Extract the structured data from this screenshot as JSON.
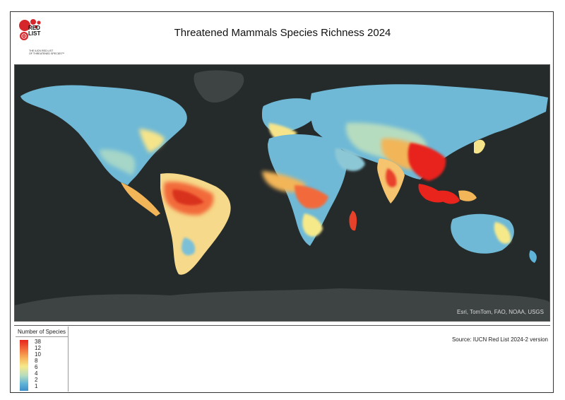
{
  "header": {
    "title": "Threatened Mammals Species Richness 2024",
    "logo": {
      "name_line1": "RED",
      "name_line2": "LIST",
      "tagline_line1": "THE IUCN RED LIST",
      "tagline_line2": "OF THREATENED SPECIES™",
      "brand_color": "#d6262b"
    }
  },
  "map": {
    "background_color": "#252a2b",
    "land_nodata_color": "#3e4344",
    "attribution": "Esri, TomTom, FAO, NOAA, USGS",
    "color_ramp": [
      "#3d8fc9",
      "#5fb3d6",
      "#b6dcc0",
      "#f6e98a",
      "#f7b15a",
      "#f26b3a",
      "#e8241c"
    ]
  },
  "legend": {
    "title": "Number of Species",
    "labels": [
      "38",
      "12",
      "10",
      "8",
      "6",
      "4",
      "2",
      "1"
    ]
  },
  "footer": {
    "source": "Source: IUCN Red List 2024-2 version"
  }
}
